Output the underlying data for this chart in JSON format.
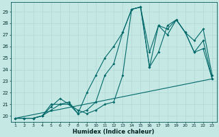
{
  "xlabel": "Humidex (Indice chaleur)",
  "background_color": "#c5e8e5",
  "grid_color": "#b0d8d5",
  "line_color": "#006868",
  "xlim": [
    0.5,
    23.5
  ],
  "ylim": [
    19.5,
    29.8
  ],
  "yticks": [
    20,
    21,
    22,
    23,
    24,
    25,
    26,
    27,
    28,
    29
  ],
  "xticks": [
    1,
    2,
    3,
    4,
    5,
    6,
    7,
    8,
    9,
    10,
    11,
    12,
    13,
    14,
    15,
    16,
    17,
    18,
    19,
    20,
    21,
    22,
    23
  ],
  "series": [
    {
      "x": [
        1,
        2,
        3,
        4,
        5,
        6,
        7,
        8,
        9,
        10,
        11,
        12,
        13,
        14,
        15,
        16,
        17,
        18,
        19,
        20,
        21,
        22,
        23
      ],
      "y": [
        19.8,
        19.8,
        19.8,
        20.0,
        21.0,
        21.0,
        21.2,
        20.2,
        22.0,
        23.5,
        25.0,
        26.0,
        27.2,
        29.2,
        29.4,
        24.2,
        27.8,
        27.5,
        28.3,
        27.2,
        25.5,
        25.8,
        23.2
      ]
    },
    {
      "x": [
        1,
        2,
        3,
        4,
        5,
        6,
        7,
        8,
        9,
        10,
        11,
        12,
        13,
        14,
        15,
        16,
        17,
        18,
        19,
        20,
        21,
        22,
        23
      ],
      "y": [
        19.8,
        19.8,
        19.8,
        20.0,
        20.5,
        21.0,
        21.0,
        20.2,
        20.5,
        21.2,
        23.5,
        24.5,
        27.2,
        29.2,
        29.4,
        25.5,
        27.8,
        27.0,
        28.3,
        27.2,
        26.5,
        27.5,
        23.5
      ]
    },
    {
      "x": [
        1,
        2,
        3,
        4,
        5,
        6,
        7,
        8,
        9,
        10,
        11,
        12,
        13,
        14,
        15,
        16,
        17,
        18,
        19,
        20,
        21,
        22,
        23
      ],
      "y": [
        19.8,
        19.8,
        19.8,
        20.0,
        20.8,
        21.5,
        21.0,
        20.5,
        20.2,
        20.5,
        21.0,
        21.2,
        23.5,
        29.2,
        29.4,
        24.2,
        25.5,
        27.8,
        28.3,
        27.2,
        25.5,
        26.5,
        23.2
      ]
    },
    {
      "x": [
        1,
        23
      ],
      "y": [
        19.8,
        23.2
      ],
      "no_marker": true
    }
  ]
}
